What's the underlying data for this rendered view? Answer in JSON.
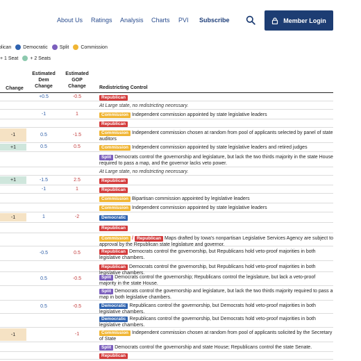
{
  "nav": {
    "about": "About Us",
    "ratings": "Ratings",
    "analysis": "Analysis",
    "charts": "Charts",
    "pvi": "PVI",
    "subscribe": "Subscribe",
    "login": "Member Login"
  },
  "legend": {
    "row1": [
      "blican",
      "Democratic",
      "Split",
      "Commission"
    ],
    "row2": [
      "+ 1 Seat",
      "+ 2 Seats"
    ]
  },
  "colors": {
    "republican": "#d43c3c",
    "democratic": "#2f63b0",
    "split": "#7b5fbd",
    "commission": "#f0b533",
    "seat1": "#cfe6dc",
    "seat2": "#8cc9ae",
    "loss": "#f5e2c4",
    "brand": "#1d3d73"
  },
  "table": {
    "headers": {
      "change": "Change",
      "dem": "Estimated Dem Change",
      "gop": "Estimated GOP Change",
      "control": "Redistricting Control"
    },
    "rows": [
      {
        "change": "",
        "dem": "+0.5",
        "gop": "-0.5",
        "badges": [
          "Republican"
        ],
        "text": ""
      },
      {
        "change": "",
        "dem": "",
        "gop": "",
        "badges": [],
        "text": "At Large state, no redistricting necessary.",
        "italic": true
      },
      {
        "change": "",
        "dem": "-1",
        "gop": "1",
        "badges": [
          "Commission"
        ],
        "text": "Independent commission appointed by state legislative leaders"
      },
      {
        "change": "",
        "dem": "",
        "gop": "",
        "badges": [
          "Republican"
        ],
        "text": ""
      },
      {
        "change": "-1",
        "dem": "0.5",
        "gop": "-1.5",
        "badges": [
          "Commission"
        ],
        "text": "Independent commission chosen at random from pool of applicants selected by panel of state auditors"
      },
      {
        "change": "+1",
        "dem": "0.5",
        "gop": "0.5",
        "badges": [
          "Commission"
        ],
        "text": "Independent commission appointed by state legislative leaders and retired judges"
      },
      {
        "change": "",
        "dem": "",
        "gop": "",
        "badges": [
          "Split"
        ],
        "text": "Democrats control the governorship and legislature, but lack the two thirds majority in the state House required to pass a map, and the governor lacks veto power."
      },
      {
        "change": "",
        "dem": "",
        "gop": "",
        "badges": [],
        "text": "At Large state, no redistricting necessary.",
        "italic": true
      },
      {
        "change": "+1",
        "dem": "-1.5",
        "gop": "2.5",
        "badges": [
          "Republican"
        ],
        "text": ""
      },
      {
        "change": "",
        "dem": "-1",
        "gop": "1",
        "badges": [
          "Republican"
        ],
        "text": ""
      },
      {
        "change": "",
        "dem": "",
        "gop": "",
        "badges": [
          "Commission"
        ],
        "text": "Bipartisan commission appointed by legislative leaders"
      },
      {
        "change": "",
        "dem": "",
        "gop": "",
        "badges": [
          "Commission"
        ],
        "text": "Independent commission appointed by state legislative leaders"
      },
      {
        "change": "-1",
        "dem": "1",
        "gop": "-2",
        "badges": [
          "Democratic"
        ],
        "text": ""
      },
      {
        "change": "",
        "dem": "",
        "gop": "",
        "badges": [
          "Republican"
        ],
        "text": ""
      },
      {
        "change": "",
        "dem": "",
        "gop": "",
        "badges": [
          "Commission",
          "Republican"
        ],
        "text": "Maps drafted by Iowa's nonpartisan Legislative Services Agency are subject to approval by the Republican state legislature and governor."
      },
      {
        "change": "",
        "dem": "-0.5",
        "gop": "0.5",
        "badges": [
          "Republican"
        ],
        "text": "Democrats control the governorship, but Republicans hold veto-proof majorities in both legislative chambers."
      },
      {
        "change": "",
        "dem": "",
        "gop": "",
        "badges": [
          "Republican"
        ],
        "text": "Democrats control the governorship, but Republicans hold veto-proof majorities in both legislative chambers."
      },
      {
        "change": "",
        "dem": "0.5",
        "gop": "-0.5",
        "badges": [
          "Split"
        ],
        "text": "Democrats control the governorship; Republicans control the legislature, but lack a veto-proof majority in the state House."
      },
      {
        "change": "",
        "dem": "",
        "gop": "",
        "badges": [
          "Split"
        ],
        "text": "Democrats control the governorship and legislature, but lack the two thirds majority required to pass a map in both legislative chambers."
      },
      {
        "change": "",
        "dem": "0.5",
        "gop": "-0.5",
        "badges": [
          "Democratic"
        ],
        "text": "Republicans control the governorship, but Democrats hold veto-proof majorities in both legislative chambers."
      },
      {
        "change": "",
        "dem": "",
        "gop": "",
        "badges": [
          "Democratic"
        ],
        "text": "Republicans control the governorship, but Democrats hold veto-proof majorities in both legislative chambers."
      },
      {
        "change": "-1",
        "dem": "",
        "gop": "-1",
        "badges": [
          "Commission"
        ],
        "text": "Independent commission chosen at random from pool of applicants solicited by the Secretary of State"
      },
      {
        "change": "",
        "dem": "",
        "gop": "",
        "badges": [
          "Split"
        ],
        "text": "Democrats control the governorship and state House; Republicans control the state Senate."
      },
      {
        "change": "",
        "dem": "",
        "gop": "",
        "badges": [
          "Republican"
        ],
        "text": ""
      }
    ]
  }
}
